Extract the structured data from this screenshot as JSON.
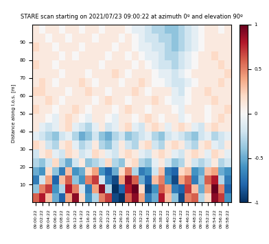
{
  "chart_data": {
    "type": "heatmap",
    "title": "STARE scan starting on 2021/07/23 09:00:22 at azimuth 0º and elevation 90º",
    "y_label": "Distance along l.o.s. [m]",
    "x": [
      "09:00:22",
      "09:02:22",
      "09:04:22",
      "09:06:22",
      "09:08:22",
      "09:10:22",
      "09:12:22",
      "09:14:22",
      "09:16:22",
      "09:18:22",
      "09:20:22",
      "09:22:22",
      "09:24:22",
      "09:26:22",
      "09:28:22",
      "09:30:22",
      "09:32:22",
      "09:34:22",
      "09:36:22",
      "09:38:22",
      "09:40:22",
      "09:42:22",
      "09:44:22",
      "09:46:22",
      "09:48:22",
      "09:50:22",
      "09:52:22",
      "09:54:22",
      "09:56:22",
      "09:58:22"
    ],
    "y_edges": [
      0,
      5,
      10,
      15,
      20,
      25,
      30,
      35,
      40,
      45,
      50,
      55,
      60,
      65,
      70,
      75,
      80,
      85,
      90,
      95,
      100
    ],
    "ylim": [
      0,
      100
    ],
    "yticks": [
      10,
      20,
      30,
      40,
      50,
      60,
      70,
      80,
      90
    ],
    "colorbar_range": [
      -1,
      1
    ],
    "colorbar_ticks": [
      -1,
      -0.5,
      0,
      0.5,
      1
    ],
    "cells": [
      [
        0.6,
        0.8,
        0.3,
        -0.5,
        -0.8,
        0.4,
        0.9,
        0.2,
        -0.6,
        -0.3,
        0.5,
        0.7,
        -0.9,
        -1.0,
        0.6,
        0.9,
        0.4,
        -0.7,
        -0.5,
        0.8,
        0.3,
        -0.4,
        -0.9,
        0.5,
        0.6,
        -0.3,
        0.2,
        0.9,
        0.7,
        -0.6
      ],
      [
        -0.4,
        0.5,
        0.7,
        -0.6,
        -0.3,
        0.8,
        0.5,
        -0.2,
        -0.7,
        0.4,
        0.9,
        -0.3,
        -1.0,
        -0.8,
        0.8,
        1.0,
        0.2,
        -0.9,
        -0.6,
        0.6,
        0.4,
        -0.7,
        -0.8,
        0.7,
        0.3,
        -0.5,
        0.4,
        1.0,
        0.5,
        -0.8
      ],
      [
        -0.7,
        -0.2,
        0.4,
        -0.8,
        0.3,
        0.6,
        -0.4,
        -0.6,
        0.5,
        0.7,
        -0.2,
        -0.7,
        -0.9,
        0.4,
        0.9,
        0.6,
        -0.5,
        -0.8,
        0.3,
        0.5,
        -0.6,
        -0.9,
        0.4,
        0.6,
        -0.7,
        -0.4,
        0.6,
        0.8,
        -0.3,
        -0.7
      ],
      [
        -0.5,
        -0.6,
        0.2,
        -0.4,
        -0.7,
        0.3,
        -0.6,
        -0.5,
        0.2,
        0.4,
        -0.6,
        -0.8,
        -0.5,
        0.2,
        0.5,
        -0.3,
        -0.7,
        -0.6,
        -0.2,
        0.3,
        -0.7,
        -0.8,
        0.2,
        0.3,
        -0.6,
        -0.5,
        0.3,
        0.4,
        -0.5,
        -0.6
      ],
      [
        -0.3,
        -0.4,
        -0.2,
        0.2,
        -0.3,
        -0.5,
        -0.2,
        0.1,
        -0.4,
        -0.3,
        -0.2,
        0.2,
        -0.3,
        -0.4,
        0.1,
        0.2,
        -0.3,
        -0.4,
        -0.1,
        0.1,
        -0.2,
        -0.4,
        -0.3,
        0.1,
        -0.2,
        -0.3,
        -0.2,
        0.1,
        -0.3,
        -0.2
      ],
      [
        -0.2,
        0.1,
        0.2,
        -0.1,
        -0.2,
        0.2,
        0.1,
        -0.2,
        -0.1,
        0.2,
        0.1,
        -0.1,
        -0.2,
        0.1,
        0.2,
        0.1,
        -0.1,
        -0.2,
        0.1,
        0.2,
        0.1,
        -0.1,
        -0.2,
        0.1,
        0.2,
        0.1,
        -0.1,
        0.2,
        0.1,
        -0.1
      ],
      [
        0.2,
        0.1,
        -0.2,
        -0.3,
        0.1,
        0.2,
        -0.1,
        -0.3,
        -0.2,
        0.1,
        -0.3,
        -0.4,
        -0.2,
        0.1,
        -0.2,
        -0.3,
        0.1,
        0.2,
        -0.2,
        -0.3,
        0.1,
        0.2,
        0.1,
        -0.2,
        -0.3,
        0.1,
        0.2,
        -0.1,
        -0.2,
        0.1
      ],
      [
        -0.1,
        -0.2,
        -0.3,
        -0.4,
        -0.2,
        -0.1,
        -0.3,
        -0.5,
        -0.4,
        -0.2,
        -0.4,
        -0.5,
        -0.3,
        -0.2,
        -0.4,
        -0.3,
        -0.2,
        -0.1,
        -0.3,
        -0.4,
        -0.2,
        -0.1,
        -0.2,
        -0.3,
        -0.4,
        -0.2,
        -0.1,
        -0.3,
        -0.2,
        -0.1
      ],
      [
        0.1,
        -0.1,
        -0.2,
        -0.1,
        0.1,
        0.2,
        -0.1,
        -0.2,
        -0.3,
        -0.1,
        0.1,
        -0.2,
        -0.1,
        0.1,
        0.2,
        -0.1,
        -0.2,
        0.1,
        0.2,
        0.1,
        -0.1,
        0.1,
        0.2,
        0.1,
        -0.1,
        -0.2,
        0.1,
        0.2,
        0.1,
        0.1
      ],
      [
        0.1,
        0.1,
        0.0,
        -0.1,
        0.1,
        0.2,
        0.1,
        0.0,
        -0.1,
        0.1,
        0.1,
        0.0,
        -0.1,
        0.1,
        0.1,
        0.0,
        0.1,
        0.2,
        0.1,
        0.0,
        0.1,
        0.1,
        -0.1,
        0.0,
        0.1,
        0.1,
        0.0,
        0.1,
        0.2,
        0.1
      ],
      [
        0.2,
        0.1,
        0.1,
        0.0,
        0.1,
        0.1,
        0.2,
        0.1,
        0.0,
        0.1,
        0.1,
        0.1,
        0.0,
        0.1,
        0.2,
        0.1,
        0.1,
        0.0,
        0.1,
        0.1,
        0.1,
        0.0,
        -0.1,
        0.1,
        0.1,
        0.1,
        0.0,
        0.1,
        0.1,
        0.2
      ],
      [
        0.1,
        0.1,
        0.2,
        0.1,
        0.0,
        0.1,
        0.1,
        0.1,
        0.1,
        0.0,
        0.1,
        0.2,
        0.1,
        0.1,
        0.0,
        0.1,
        0.1,
        0.1,
        0.2,
        0.1,
        0.0,
        -0.1,
        -0.1,
        0.0,
        0.1,
        0.1,
        0.1,
        0.2,
        0.1,
        0.1
      ],
      [
        0.2,
        0.2,
        0.1,
        0.1,
        0.1,
        0.0,
        0.1,
        0.1,
        0.2,
        0.1,
        0.1,
        0.0,
        0.1,
        0.1,
        0.1,
        0.2,
        0.1,
        0.0,
        0.1,
        0.1,
        0.1,
        -0.1,
        -0.2,
        0.0,
        0.1,
        0.1,
        0.2,
        0.1,
        0.1,
        0.1
      ],
      [
        0.1,
        0.2,
        0.1,
        0.0,
        0.1,
        0.1,
        0.1,
        0.2,
        0.1,
        0.0,
        0.1,
        0.1,
        0.1,
        0.0,
        0.1,
        0.1,
        0.2,
        0.1,
        0.0,
        0.0,
        -0.1,
        -0.2,
        -0.2,
        -0.1,
        0.0,
        0.1,
        0.1,
        0.1,
        0.2,
        0.1
      ],
      [
        0.1,
        0.1,
        0.1,
        0.1,
        0.0,
        0.1,
        0.1,
        0.1,
        0.0,
        0.1,
        0.1,
        0.1,
        0.2,
        0.1,
        0.0,
        0.1,
        0.1,
        0.1,
        0.0,
        -0.1,
        -0.1,
        -0.2,
        -0.1,
        0.0,
        0.1,
        0.1,
        0.1,
        0.1,
        0.1,
        0.2
      ],
      [
        0.2,
        0.1,
        0.1,
        0.0,
        0.1,
        0.1,
        0.1,
        0.1,
        0.1,
        0.1,
        0.0,
        0.1,
        0.1,
        0.1,
        0.1,
        0.0,
        0.1,
        0.0,
        -0.1,
        -0.2,
        -0.2,
        -0.3,
        -0.2,
        -0.1,
        0.0,
        0.1,
        0.1,
        0.1,
        0.2,
        0.1
      ],
      [
        0.1,
        0.1,
        0.1,
        0.1,
        0.0,
        0.1,
        0.0,
        0.1,
        0.1,
        0.1,
        0.1,
        0.0,
        0.1,
        0.1,
        0.0,
        0.1,
        0.0,
        -0.1,
        -0.1,
        -0.2,
        -0.3,
        -0.3,
        -0.2,
        -0.1,
        0.0,
        0.1,
        0.1,
        0.2,
        0.1,
        0.1
      ],
      [
        0.2,
        0.1,
        0.1,
        0.0,
        0.1,
        0.1,
        0.1,
        0.0,
        0.1,
        0.1,
        0.1,
        0.1,
        0.0,
        0.1,
        0.1,
        0.0,
        -0.1,
        -0.1,
        -0.2,
        -0.2,
        -0.3,
        -0.4,
        -0.3,
        -0.2,
        -0.1,
        0.0,
        0.1,
        0.1,
        0.1,
        0.1
      ],
      [
        0.1,
        0.1,
        0.0,
        0.1,
        0.1,
        0.0,
        0.1,
        0.1,
        0.1,
        0.0,
        0.1,
        0.1,
        0.1,
        0.0,
        0.1,
        0.0,
        -0.1,
        -0.2,
        -0.2,
        -0.3,
        -0.3,
        -0.4,
        -0.3,
        -0.2,
        -0.1,
        0.0,
        0.1,
        0.1,
        0.1,
        0.1
      ],
      [
        0.1,
        0.0,
        0.1,
        0.1,
        0.0,
        0.1,
        0.1,
        0.0,
        0.1,
        0.1,
        0.0,
        0.1,
        0.1,
        0.1,
        0.0,
        -0.1,
        -0.1,
        -0.2,
        -0.3,
        -0.3,
        -0.4,
        -0.4,
        -0.3,
        -0.2,
        -0.1,
        0.0,
        0.1,
        0.1,
        0.0,
        0.1
      ]
    ]
  }
}
